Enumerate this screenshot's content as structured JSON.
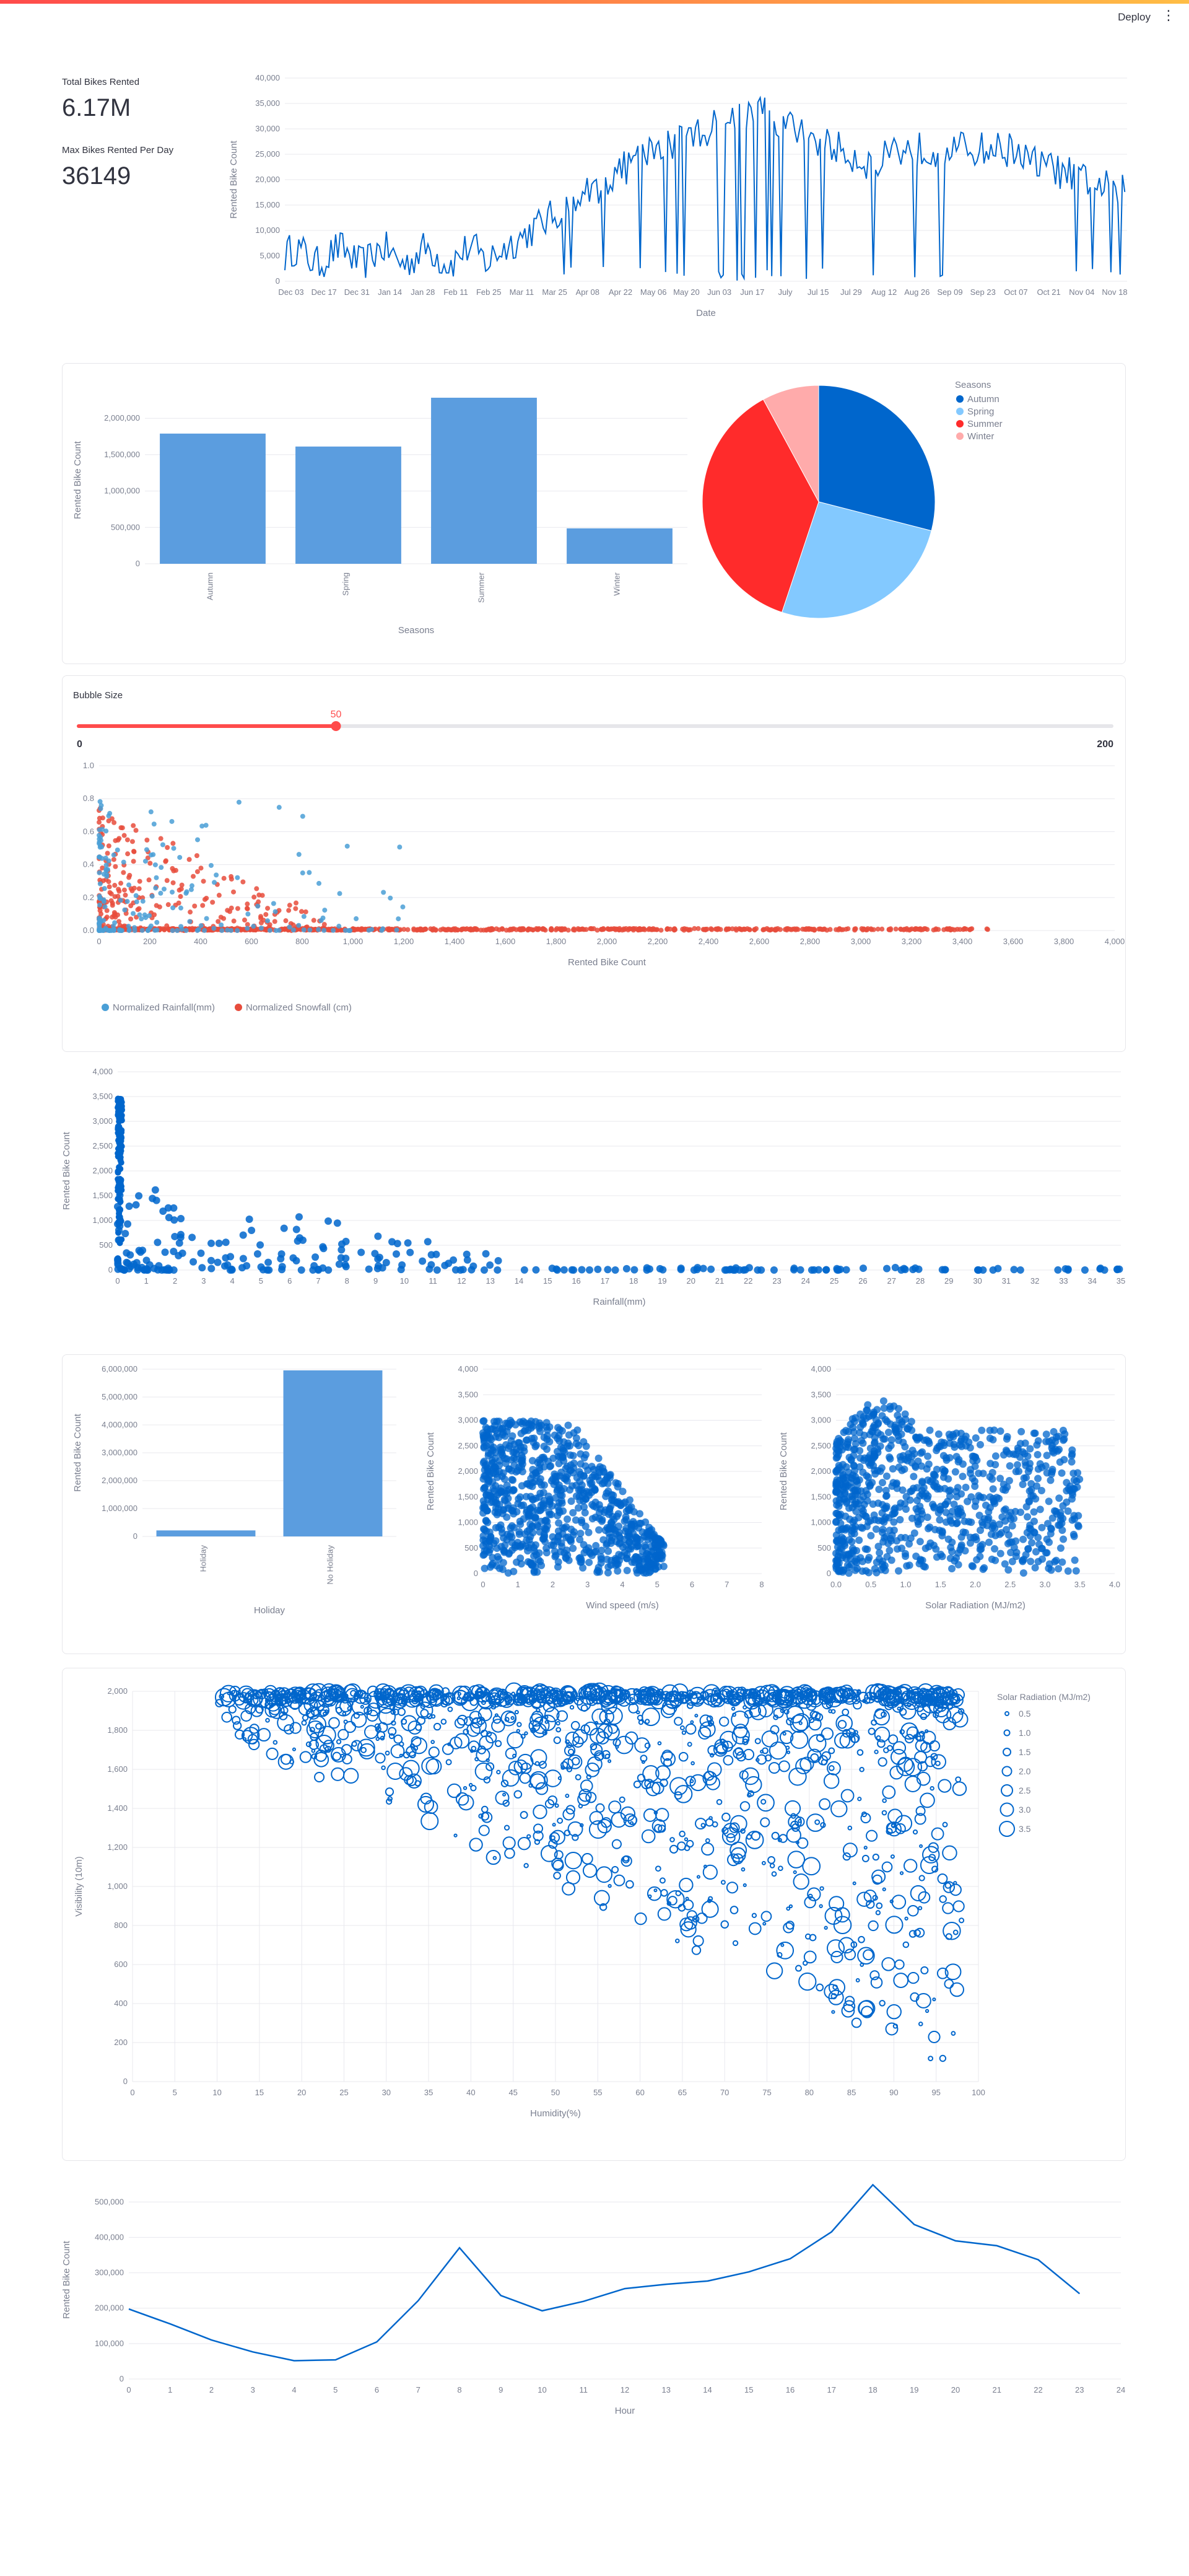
{
  "header": {
    "deploy_label": "Deploy",
    "menu_icon": "vertical-dots-icon"
  },
  "metrics": [
    {
      "label": "Total Bikes Rented",
      "value": "6.17M"
    },
    {
      "label": "Max Bikes Rented Per Day",
      "value": "36149"
    }
  ],
  "colors": {
    "primary": "#0066cc",
    "bar": "#5b9ddf",
    "rain": "#4a9fd6",
    "snow": "#e74c3c",
    "slider": "#ff4b4b"
  },
  "slider": {
    "label": "Bubble Size",
    "value": 50,
    "min": 0,
    "max": 200
  },
  "chart_data": [
    {
      "type": "line",
      "xlabel": "Date",
      "ylabel": "Rented Bike Count",
      "x_ticks": [
        "Dec 03",
        "Dec 17",
        "Dec 31",
        "Jan 14",
        "Jan 28",
        "Feb 11",
        "Feb 25",
        "Mar 11",
        "Mar 25",
        "Apr 08",
        "Apr 22",
        "May 06",
        "May 20",
        "Jun 03",
        "Jun 17",
        "July",
        "Jul 15",
        "Jul 29",
        "Aug 12",
        "Aug 26",
        "Sep 09",
        "Sep 23",
        "Oct 07",
        "Oct 21",
        "Nov 04",
        "Nov 18"
      ],
      "y_ticks": [
        "0",
        "5,000",
        "10,000",
        "15,000",
        "20,000",
        "25,000",
        "30,000",
        "35,000",
        "40,000"
      ],
      "ylim": [
        0,
        40000
      ],
      "x_range": [
        "Dec 01",
        "Nov 30"
      ],
      "series": [
        {
          "values_per_day_sampled": true
        }
      ]
    },
    {
      "type": "bar",
      "categories": [
        "Autumn",
        "Spring",
        "Summer",
        "Winter"
      ],
      "values": [
        1790002,
        1611909,
        2283234,
        487169
      ],
      "xlabel": "Seasons",
      "ylabel": "Rented Bike Count",
      "y_ticks": [
        "0",
        "500,000",
        "1,000,000",
        "1,500,000",
        "2,000,000"
      ],
      "ylim": [
        0,
        2300000
      ]
    },
    {
      "type": "pie",
      "legend_title": "Seasons",
      "labels": [
        "Autumn",
        "Spring",
        "Summer",
        "Winter"
      ],
      "values": [
        1790002,
        1611909,
        2283234,
        487169
      ],
      "colors": [
        "#0066cc",
        "#83c9ff",
        "#ff2b2b",
        "#ffabab"
      ]
    },
    {
      "type": "scatter",
      "xlabel": "Rented Bike Count",
      "y_ticks": [
        "0.0",
        "0.2",
        "0.4",
        "0.6",
        "0.8",
        "1.0"
      ],
      "x_ticks": [
        "0",
        "200",
        "400",
        "600",
        "800",
        "1,000",
        "1,200",
        "1,400",
        "1,600",
        "1,800",
        "2,000",
        "2,200",
        "2,400",
        "2,600",
        "2,800",
        "3,000",
        "3,200",
        "3,400",
        "3,600",
        "3,800",
        "4,000"
      ],
      "xlim": [
        0,
        4000
      ],
      "ylim": [
        0,
        1
      ],
      "series": [
        {
          "name": "Normalized Rainfall(mm)",
          "color": "#4a9fd6"
        },
        {
          "name": "Normalized Snowfall (cm)",
          "color": "#e74c3c"
        }
      ]
    },
    {
      "type": "scatter",
      "xlabel": "Rainfall(mm)",
      "ylabel": "Rented Bike Count",
      "x_ticks": [
        "0",
        "1",
        "2",
        "3",
        "4",
        "5",
        "6",
        "7",
        "8",
        "9",
        "10",
        "11",
        "12",
        "13",
        "14",
        "15",
        "16",
        "17",
        "18",
        "19",
        "20",
        "21",
        "22",
        "23",
        "24",
        "25",
        "26",
        "27",
        "28",
        "29",
        "30",
        "31",
        "32",
        "33",
        "34",
        "35"
      ],
      "y_ticks": [
        "0",
        "500",
        "1,000",
        "1,500",
        "2,000",
        "2,500",
        "3,000",
        "3,500",
        "4,000"
      ],
      "xlim": [
        0,
        35
      ],
      "ylim": [
        0,
        4000
      ]
    },
    {
      "type": "bar",
      "categories": [
        "Holiday",
        "No Holiday"
      ],
      "values": [
        215895,
        5956419
      ],
      "xlabel": "Holiday",
      "ylabel": "Rented Bike Count",
      "y_ticks": [
        "0",
        "1,000,000",
        "2,000,000",
        "3,000,000",
        "4,000,000",
        "5,000,000",
        "6,000,000"
      ],
      "ylim": [
        0,
        6000000
      ]
    },
    {
      "type": "scatter",
      "xlabel": "Wind speed (m/s)",
      "ylabel": "Rented Bike Count",
      "x_ticks": [
        "0",
        "1",
        "2",
        "3",
        "4",
        "5",
        "6",
        "7",
        "8"
      ],
      "y_ticks": [
        "0",
        "500",
        "1,000",
        "1,500",
        "2,000",
        "2,500",
        "3,000",
        "3,500",
        "4,000"
      ],
      "xlim": [
        0,
        8
      ],
      "ylim": [
        0,
        4000
      ]
    },
    {
      "type": "scatter",
      "xlabel": "Solar Radiation (MJ/m2)",
      "ylabel": "Rented Bike Count",
      "x_ticks": [
        "0.0",
        "0.5",
        "1.0",
        "1.5",
        "2.0",
        "2.5",
        "3.0",
        "3.5",
        "4.0"
      ],
      "y_ticks": [
        "0",
        "500",
        "1,000",
        "1,500",
        "2,000",
        "2,500",
        "3,000",
        "3,500",
        "4,000"
      ],
      "xlim": [
        0,
        4
      ],
      "ylim": [
        0,
        4000
      ]
    },
    {
      "type": "scatter",
      "xlabel": "Humidity(%)",
      "ylabel": "Visibility (10m)",
      "x_ticks": [
        "0",
        "5",
        "10",
        "15",
        "20",
        "25",
        "30",
        "35",
        "40",
        "45",
        "50",
        "55",
        "60",
        "65",
        "70",
        "75",
        "80",
        "85",
        "90",
        "95",
        "100"
      ],
      "y_ticks": [
        "0",
        "200",
        "400",
        "600",
        "800",
        "1,000",
        "1,200",
        "1,400",
        "1,600",
        "1,800",
        "2,000"
      ],
      "xlim": [
        0,
        100
      ],
      "ylim": [
        0,
        2000
      ],
      "legend_title": "Solar Radiation (MJ/m2)",
      "legend_sizes": [
        "0.5",
        "1.0",
        "1.5",
        "2.0",
        "2.5",
        "3.0",
        "3.5"
      ]
    },
    {
      "type": "line",
      "xlabel": "Hour",
      "ylabel": "Rented Bike Count",
      "x": [
        0,
        1,
        2,
        3,
        4,
        5,
        6,
        7,
        8,
        9,
        10,
        11,
        12,
        13,
        14,
        15,
        16,
        17,
        18,
        19,
        20,
        21,
        22,
        23
      ],
      "values": [
        197633,
        155557,
        110095,
        76484,
        51543,
        54124,
        104847,
        221192,
        370731,
        235784,
        192655,
        219311,
        255296,
        267635,
        276707,
        302653,
        339677,
        415556,
        548568,
        436229,
        390172,
        376479,
        336821,
        241005
      ],
      "x_ticks": [
        "0",
        "1",
        "2",
        "3",
        "4",
        "5",
        "6",
        "7",
        "8",
        "9",
        "10",
        "11",
        "12",
        "13",
        "14",
        "15",
        "16",
        "17",
        "18",
        "19",
        "20",
        "21",
        "22",
        "23",
        "24"
      ],
      "y_ticks": [
        "0",
        "100,000",
        "200,000",
        "300,000",
        "400,000",
        "500,000"
      ],
      "xlim": [
        0,
        24
      ],
      "ylim": [
        0,
        560000
      ]
    }
  ]
}
